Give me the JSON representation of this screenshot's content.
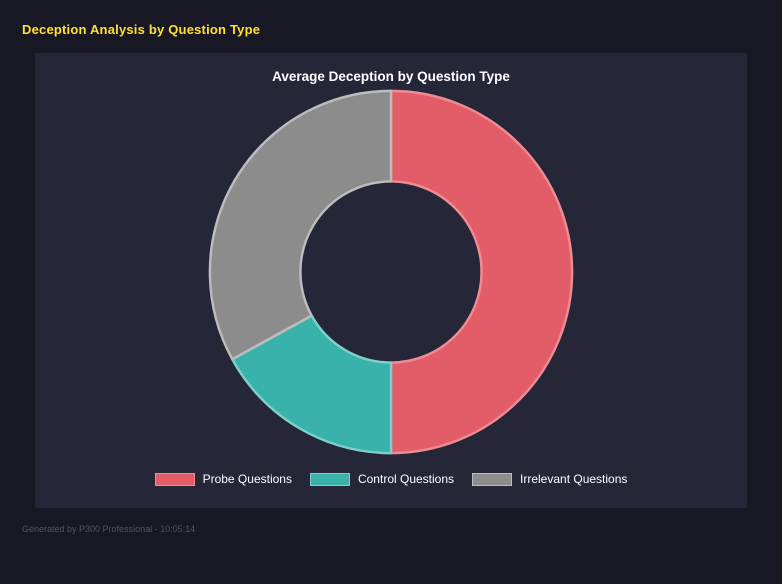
{
  "page": {
    "title": "Deception Analysis by Question Type",
    "footer": "Generated by P300 Professional - 10:05:14"
  },
  "colors": {
    "page_background": "#181824",
    "panel_background": "#262639",
    "page_title_yellow": "#ffe135",
    "chart_title_white": "#ffffff",
    "legend_text": "#ffffff",
    "footer_text": "#54545e"
  },
  "chart_data": {
    "type": "pie",
    "variant": "doughnut",
    "title": "Average Deception by Question Type",
    "labels": [
      "Probe Questions",
      "Control Questions",
      "Irrelevant Questions"
    ],
    "values": [
      50,
      17,
      33
    ],
    "unit": "percent_of_total",
    "colors": [
      "#e35d68",
      "#38b2aa",
      "#8c8c8c"
    ],
    "border_colors": [
      "#ef8b93",
      "#7fd0ca",
      "#bdbdbd"
    ],
    "hole_ratio": 0.5,
    "start_angle_deg": -90,
    "direction": "clockwise",
    "legend_position": "bottom",
    "grid": false
  }
}
